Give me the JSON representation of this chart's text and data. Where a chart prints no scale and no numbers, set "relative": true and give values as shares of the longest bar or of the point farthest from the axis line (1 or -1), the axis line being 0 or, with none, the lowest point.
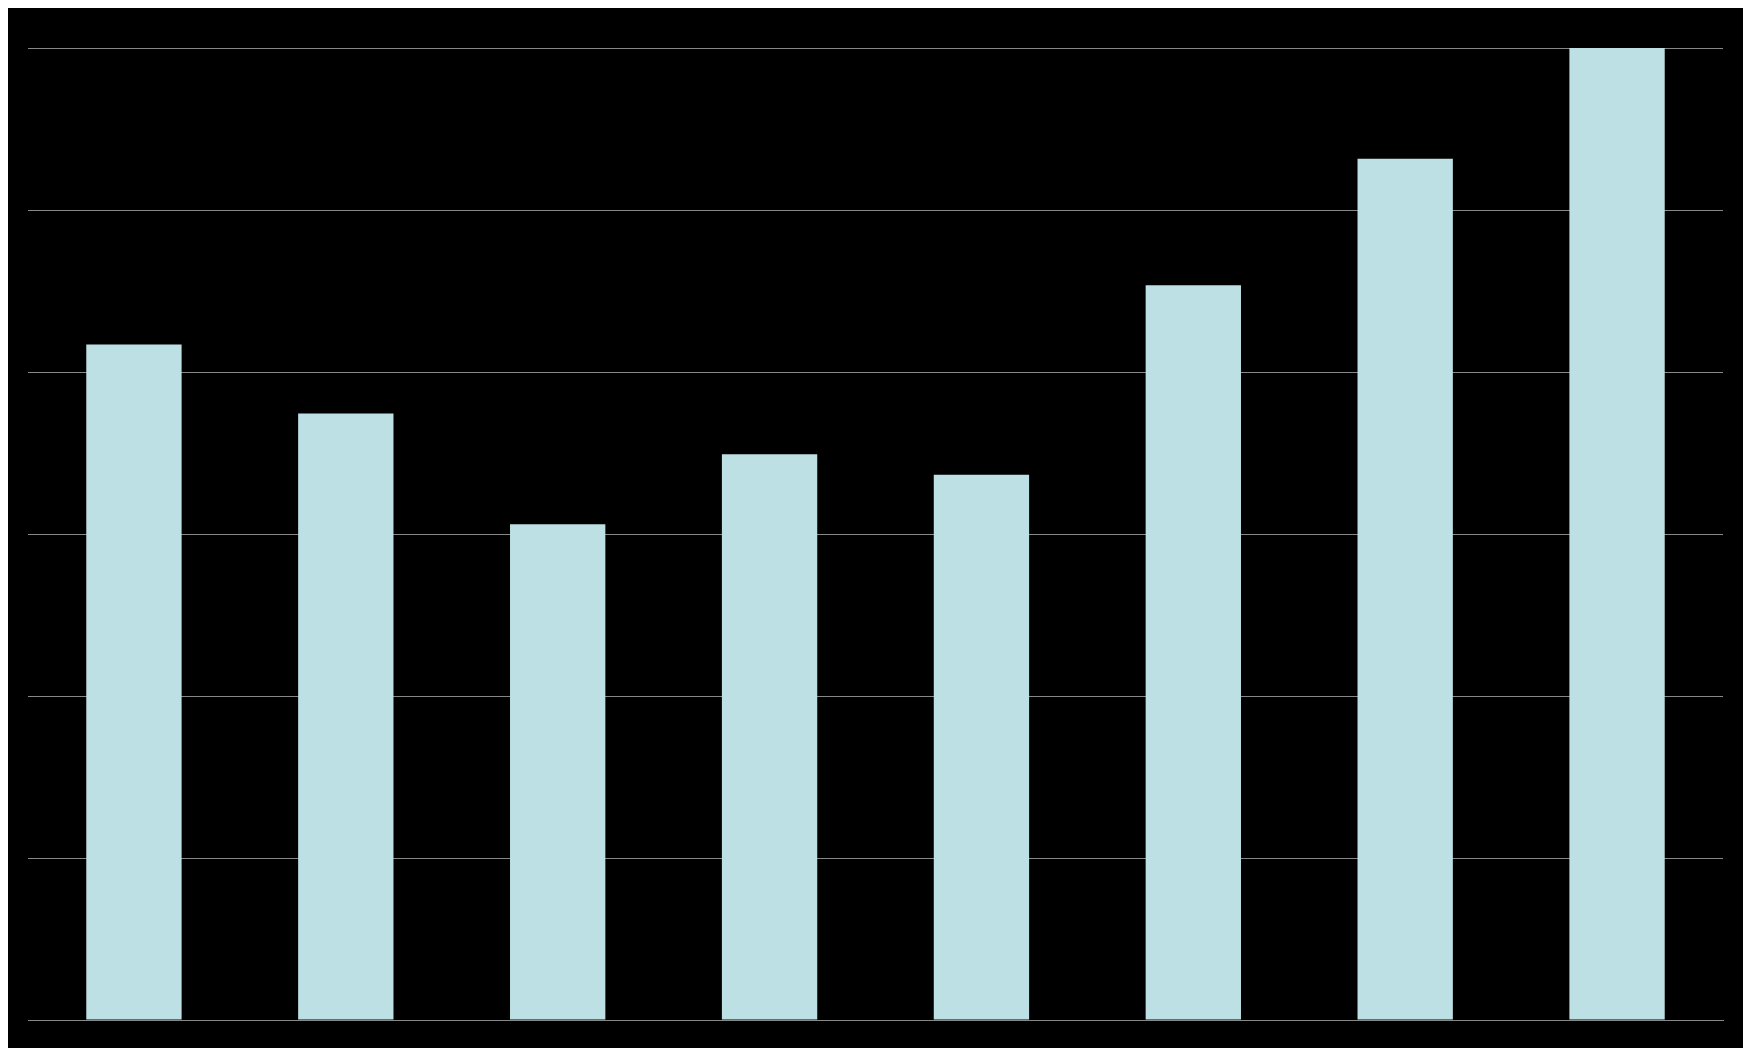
{
  "chart_data": {
    "type": "bar",
    "relative": true,
    "categories": [
      null,
      null,
      null,
      null,
      null,
      null,
      null,
      null
    ],
    "values": [
      0.695,
      0.624,
      0.51,
      0.582,
      0.561,
      0.756,
      0.886,
      1
    ],
    "color": "#bce0e3",
    "grid": "y"
  }
}
